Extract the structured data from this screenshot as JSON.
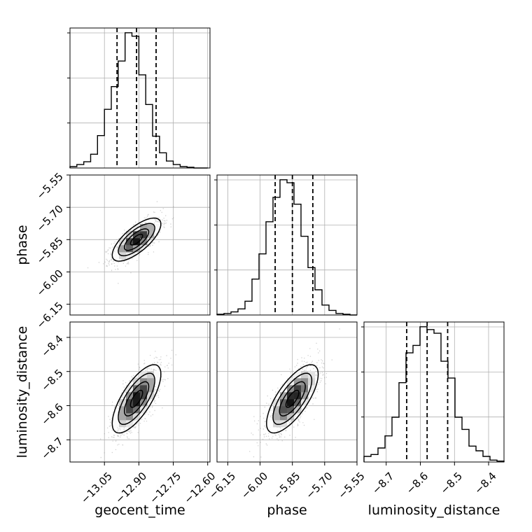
{
  "chart_data": {
    "type": "corner",
    "parameters": [
      {
        "name": "geocent_time",
        "label": "geocent_time",
        "range": [
          -13.2,
          -12.59
        ],
        "ticks": [
          -13.05,
          -12.9,
          -12.75,
          -12.6
        ],
        "tick_labels": [
          "−13.05",
          "−12.90",
          "−12.75",
          "−12.60"
        ],
        "quantiles": [
          -12.995,
          -12.91,
          -12.825
        ],
        "histogram": {
          "bin_edges": [
            -13.2,
            -13.17,
            -13.14,
            -13.11,
            -13.08,
            -13.05,
            -13.02,
            -12.99,
            -12.96,
            -12.93,
            -12.9,
            -12.87,
            -12.84,
            -12.81,
            -12.78,
            -12.75,
            -12.72,
            -12.69,
            -12.66,
            -12.63,
            -12.6
          ],
          "counts": [
            2,
            5,
            9,
            20,
            47,
            85,
            118,
            155,
            196,
            191,
            135,
            92,
            46,
            22,
            10,
            5,
            2,
            1,
            0,
            0
          ]
        }
      },
      {
        "name": "phase",
        "label": "phase",
        "range": [
          -6.2,
          -5.55
        ],
        "ticks": [
          -6.15,
          -6.0,
          -5.85,
          -5.7,
          -5.55
        ],
        "tick_labels": [
          "−6.15",
          "−6.00",
          "−5.85",
          "−5.70",
          "−5.55"
        ],
        "quantiles": [
          -5.93,
          -5.85,
          -5.755
        ],
        "histogram": {
          "bin_edges": [
            -6.2,
            -6.1675,
            -6.135,
            -6.1025,
            -6.07,
            -6.0375,
            -6.005,
            -5.9725,
            -5.94,
            -5.9075,
            -5.875,
            -5.8425,
            -5.81,
            -5.7775,
            -5.745,
            -5.7125,
            -5.68,
            -5.6475,
            -5.615,
            -5.5825,
            -5.55
          ],
          "counts": [
            1,
            2,
            4,
            8,
            18,
            47,
            80,
            122,
            154,
            177,
            173,
            145,
            103,
            62,
            33,
            13,
            6,
            2,
            1,
            0
          ]
        }
      },
      {
        "name": "luminosity_distance",
        "label": "luminosity_distance",
        "range": [
          -8.765,
          -8.355
        ],
        "ticks": [
          -8.7,
          -8.6,
          -8.5,
          -8.4
        ],
        "tick_labels": [
          "−8.7",
          "−8.6",
          "−8.5",
          "−8.4"
        ],
        "quantiles": [
          -8.64,
          -8.58,
          -8.52
        ],
        "histogram": {
          "bin_edges": [
            -8.765,
            -8.7445,
            -8.724,
            -8.7035,
            -8.683,
            -8.6625,
            -8.642,
            -8.6215,
            -8.601,
            -8.5805,
            -8.56,
            -8.5395,
            -8.519,
            -8.4985,
            -8.478,
            -8.4575,
            -8.437,
            -8.4165,
            -8.396,
            -8.3755,
            -8.355
          ],
          "counts": [
            6,
            8,
            15,
            28,
            48,
            85,
            117,
            125,
            145,
            142,
            138,
            108,
            90,
            48,
            35,
            17,
            12,
            6,
            2,
            1
          ]
        }
      }
    ],
    "pairs": [
      {
        "x": "geocent_time",
        "y": "phase",
        "center": [
          -12.91,
          -5.85
        ],
        "sigma": [
          0.053,
          0.05
        ],
        "correlation": 0.72
      },
      {
        "x": "geocent_time",
        "y": "luminosity_distance",
        "center": [
          -12.91,
          -8.58
        ],
        "sigma": [
          0.053,
          0.05
        ],
        "correlation": 0.72
      },
      {
        "x": "phase",
        "y": "luminosity_distance",
        "center": [
          -5.85,
          -8.58
        ],
        "sigma": [
          0.06,
          0.05
        ],
        "correlation": 0.72
      }
    ],
    "contour_levels_sigma": [
      0.5,
      1.0,
      1.5,
      2.0
    ],
    "grid": true,
    "colors": {
      "line": "#000000",
      "grid": "#b0b0b0",
      "scatter": "#9a9a9a"
    }
  }
}
